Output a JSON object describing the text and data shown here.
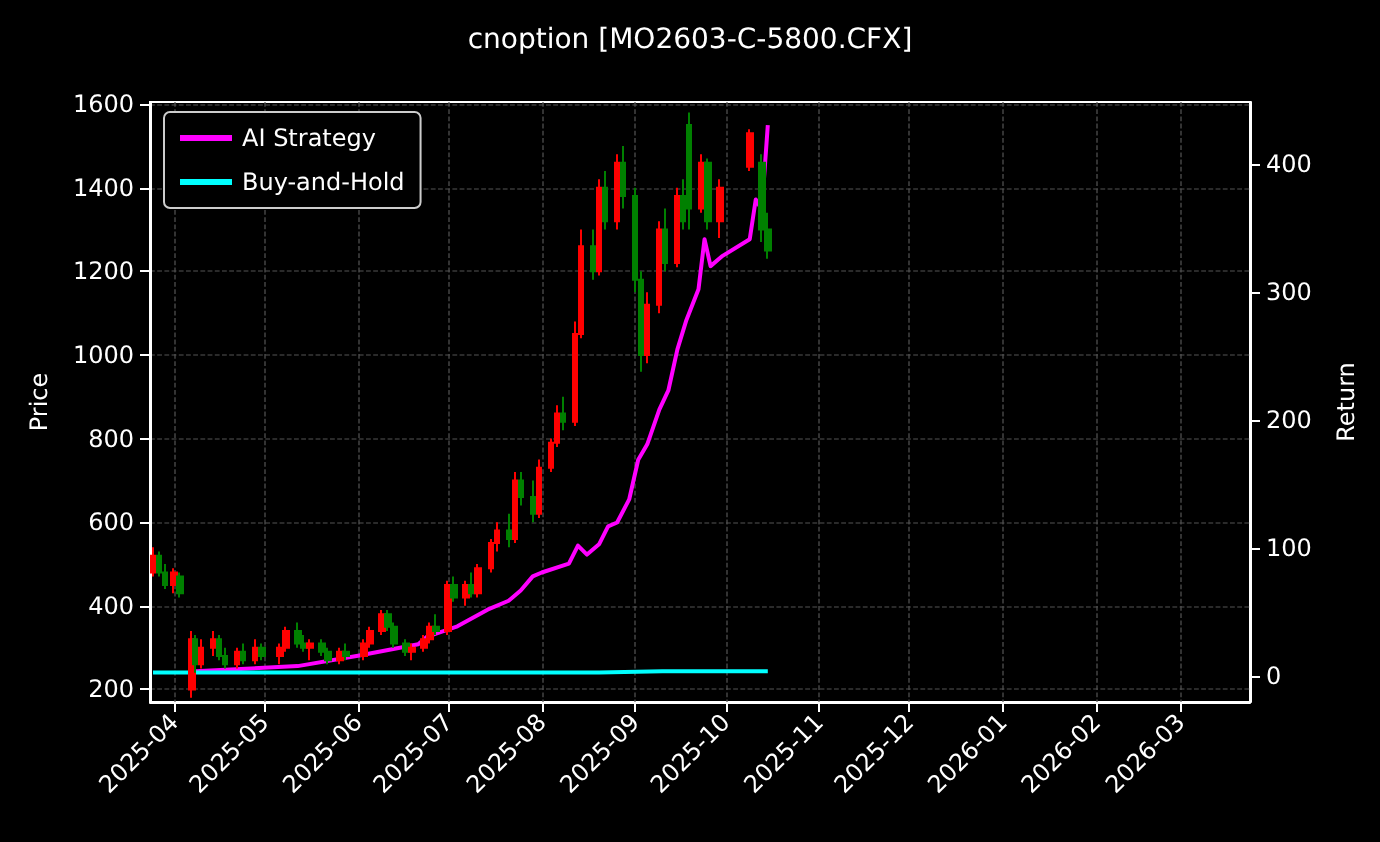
{
  "chart_data": {
    "type": "candlestick",
    "title": "cnoption [MO2603-C-5800.CFX]",
    "ylabel": "Price",
    "y2label": "Return",
    "x": [
      "2025-03-25",
      "2025-03-27",
      "2025-03-29",
      "2025-04-01",
      "2025-04-03",
      "2025-04-07",
      "2025-04-08",
      "2025-04-10",
      "2025-04-14",
      "2025-04-16",
      "2025-04-18",
      "2025-04-22",
      "2025-04-24",
      "2025-04-28",
      "2025-04-30",
      "2025-05-06",
      "2025-05-08",
      "2025-05-12",
      "2025-05-14",
      "2025-05-16",
      "2025-05-20",
      "2025-05-22",
      "2025-05-26",
      "2025-05-28",
      "2025-06-03",
      "2025-06-05",
      "2025-06-09",
      "2025-06-11",
      "2025-06-13",
      "2025-06-17",
      "2025-06-19",
      "2025-06-23",
      "2025-06-25",
      "2025-06-27",
      "2025-07-01",
      "2025-07-03",
      "2025-07-07",
      "2025-07-09",
      "2025-07-11",
      "2025-07-15",
      "2025-07-17",
      "2025-07-21",
      "2025-07-23",
      "2025-07-25",
      "2025-07-29",
      "2025-07-31",
      "2025-08-04",
      "2025-08-06",
      "2025-08-08",
      "2025-08-12",
      "2025-08-14",
      "2025-08-18",
      "2025-08-20",
      "2025-08-22",
      "2025-08-26",
      "2025-08-28",
      "2025-09-01",
      "2025-09-03",
      "2025-09-05",
      "2025-09-09",
      "2025-09-11",
      "2025-09-15",
      "2025-09-17",
      "2025-09-19",
      "2025-09-23",
      "2025-09-25",
      "2025-09-29",
      "2025-10-09",
      "2025-10-13",
      "2025-10-15"
    ],
    "ohlc": [
      [
        480,
        540,
        470,
        520
      ],
      [
        520,
        530,
        470,
        480
      ],
      [
        480,
        500,
        440,
        450
      ],
      [
        450,
        490,
        430,
        480
      ],
      [
        470,
        480,
        420,
        430
      ],
      [
        200,
        340,
        180,
        320
      ],
      [
        320,
        330,
        240,
        260
      ],
      [
        260,
        320,
        250,
        300
      ],
      [
        300,
        340,
        280,
        320
      ],
      [
        320,
        330,
        270,
        280
      ],
      [
        280,
        300,
        250,
        260
      ],
      [
        260,
        300,
        250,
        290
      ],
      [
        290,
        310,
        260,
        270
      ],
      [
        270,
        320,
        260,
        300
      ],
      [
        300,
        310,
        270,
        280
      ],
      [
        280,
        310,
        260,
        300
      ],
      [
        300,
        350,
        290,
        340
      ],
      [
        340,
        360,
        300,
        310
      ],
      [
        310,
        330,
        290,
        300
      ],
      [
        300,
        320,
        270,
        310
      ],
      [
        310,
        320,
        280,
        290
      ],
      [
        290,
        300,
        260,
        270
      ],
      [
        270,
        300,
        260,
        290
      ],
      [
        290,
        310,
        270,
        280
      ],
      [
        280,
        320,
        270,
        310
      ],
      [
        310,
        350,
        300,
        340
      ],
      [
        340,
        390,
        330,
        380
      ],
      [
        380,
        390,
        340,
        350
      ],
      [
        350,
        360,
        300,
        310
      ],
      [
        310,
        320,
        280,
        290
      ],
      [
        290,
        310,
        270,
        300
      ],
      [
        300,
        330,
        290,
        320
      ],
      [
        320,
        360,
        310,
        350
      ],
      [
        350,
        380,
        330,
        340
      ],
      [
        340,
        460,
        330,
        450
      ],
      [
        450,
        470,
        410,
        420
      ],
      [
        420,
        460,
        400,
        450
      ],
      [
        450,
        480,
        420,
        430
      ],
      [
        430,
        500,
        420,
        490
      ],
      [
        490,
        560,
        480,
        550
      ],
      [
        550,
        600,
        530,
        580
      ],
      [
        580,
        620,
        540,
        560
      ],
      [
        560,
        720,
        550,
        700
      ],
      [
        700,
        720,
        640,
        660
      ],
      [
        660,
        700,
        600,
        620
      ],
      [
        620,
        750,
        610,
        730
      ],
      [
        730,
        800,
        720,
        790
      ],
      [
        790,
        880,
        780,
        860
      ],
      [
        860,
        900,
        820,
        840
      ],
      [
        840,
        1080,
        830,
        1050
      ],
      [
        1050,
        1300,
        1040,
        1260
      ],
      [
        1260,
        1300,
        1180,
        1200
      ],
      [
        1200,
        1420,
        1190,
        1400
      ],
      [
        1400,
        1440,
        1300,
        1320
      ],
      [
        1320,
        1480,
        1300,
        1460
      ],
      [
        1460,
        1500,
        1350,
        1380
      ],
      [
        1380,
        1400,
        1150,
        1180
      ],
      [
        1180,
        1200,
        960,
        1000
      ],
      [
        1000,
        1150,
        980,
        1120
      ],
      [
        1120,
        1320,
        1100,
        1300
      ],
      [
        1300,
        1350,
        1200,
        1220
      ],
      [
        1220,
        1400,
        1210,
        1380
      ],
      [
        1380,
        1420,
        1300,
        1320
      ],
      [
        1550,
        1580,
        1300,
        1350
      ],
      [
        1350,
        1480,
        1340,
        1460
      ],
      [
        1460,
        1470,
        1300,
        1320
      ],
      [
        1320,
        1420,
        1280,
        1400
      ],
      [
        1450,
        1540,
        1440,
        1530
      ],
      [
        1460,
        1480,
        1270,
        1300
      ],
      [
        1300,
        1340,
        1230,
        1250
      ]
    ],
    "colors": [
      "#ff0000",
      "#008000",
      "#008000",
      "#ff0000",
      "#008000",
      "#ff0000",
      "#008000",
      "#ff0000",
      "#ff0000",
      "#008000",
      "#008000",
      "#ff0000",
      "#008000",
      "#ff0000",
      "#008000",
      "#ff0000",
      "#ff0000",
      "#008000",
      "#008000",
      "#ff0000",
      "#008000",
      "#008000",
      "#ff0000",
      "#008000",
      "#ff0000",
      "#ff0000",
      "#ff0000",
      "#008000",
      "#008000",
      "#008000",
      "#ff0000",
      "#ff0000",
      "#ff0000",
      "#008000",
      "#ff0000",
      "#008000",
      "#ff0000",
      "#008000",
      "#ff0000",
      "#ff0000",
      "#ff0000",
      "#008000",
      "#ff0000",
      "#008000",
      "#008000",
      "#ff0000",
      "#ff0000",
      "#ff0000",
      "#008000",
      "#ff0000",
      "#ff0000",
      "#008000",
      "#ff0000",
      "#008000",
      "#ff0000",
      "#008000",
      "#008000",
      "#008000",
      "#ff0000",
      "#ff0000",
      "#008000",
      "#ff0000",
      "#008000",
      "#008000",
      "#ff0000",
      "#008000",
      "#ff0000",
      "#ff0000",
      "#008000",
      "#008000"
    ],
    "series": [
      {
        "name": "AI Strategy",
        "type": "line",
        "axis": "y2",
        "color": "#ff00ff",
        "x": [
          "2025-04-08",
          "2025-05-12",
          "2025-06-01",
          "2025-06-21",
          "2025-06-24",
          "2025-07-04",
          "2025-07-14",
          "2025-07-21",
          "2025-07-25",
          "2025-07-29",
          "2025-08-01",
          "2025-08-10",
          "2025-08-13",
          "2025-08-16",
          "2025-08-20",
          "2025-08-23",
          "2025-08-26",
          "2025-08-30",
          "2025-09-02",
          "2025-09-05",
          "2025-09-09",
          "2025-09-12",
          "2025-09-15",
          "2025-09-18",
          "2025-09-22",
          "2025-09-24",
          "2025-09-26",
          "2025-09-30",
          "2025-10-09",
          "2025-10-11",
          "2025-10-13",
          "2025-10-15"
        ],
        "values": [
          4,
          8,
          16,
          25,
          31,
          39,
          52,
          59,
          67,
          78,
          81,
          88,
          102,
          95,
          103,
          117,
          120,
          138,
          169,
          181,
          208,
          223,
          255,
          278,
          302,
          341,
          320,
          328,
          341,
          372,
          364,
          430
        ]
      },
      {
        "name": "Buy-and-Hold",
        "type": "line",
        "axis": "y2",
        "color": "#00ffff",
        "x": [
          "2025-03-25",
          "2025-05-01",
          "2025-07-01",
          "2025-08-20",
          "2025-09-10",
          "2025-10-01",
          "2025-10-15"
        ],
        "values": [
          3,
          3,
          3,
          3,
          4,
          4,
          4
        ]
      }
    ],
    "ylim": [
      170,
      1605
    ],
    "yticks": [
      200,
      400,
      600,
      800,
      1000,
      1200,
      1400,
      1600
    ],
    "y2lim": [
      -20,
      448
    ],
    "y2ticks": [
      0,
      100,
      200,
      300,
      400
    ],
    "xlim": [
      "2025-03-24",
      "2026-03-24"
    ],
    "xticks": [
      "2025-04",
      "2025-05",
      "2025-06",
      "2025-07",
      "2025-08",
      "2025-09",
      "2025-10",
      "2025-11",
      "2025-12",
      "2026-01",
      "2026-02",
      "2026-03"
    ],
    "grid": true,
    "legend": "top left"
  }
}
